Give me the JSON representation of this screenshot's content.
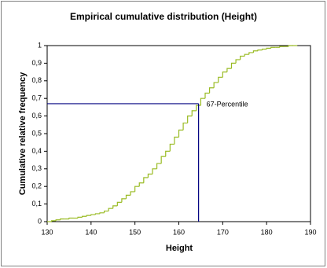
{
  "chart_data": {
    "type": "step",
    "title": "Empirical cumulative distribution (Height)",
    "x_label": "Height",
    "y_label": "Cumulative relative frequency",
    "x": [
      130,
      131,
      132,
      133,
      134,
      135,
      136,
      137,
      138,
      139,
      140,
      141,
      142,
      143,
      144,
      145,
      146,
      147,
      148,
      149,
      150,
      151,
      152,
      153,
      154,
      155,
      156,
      157,
      158,
      159,
      160,
      161,
      162,
      163,
      164,
      165,
      166,
      167,
      168,
      169,
      170,
      171,
      172,
      173,
      174,
      175,
      176,
      177,
      178,
      179,
      180,
      181,
      182,
      183,
      184,
      185,
      186,
      187
    ],
    "series": [
      {
        "color": "#99bb22",
        "values": [
          0,
          0.005,
          0.01,
          0.015,
          0.015,
          0.02,
          0.02,
          0.025,
          0.03,
          0.035,
          0.04,
          0.045,
          0.05,
          0.06,
          0.075,
          0.09,
          0.11,
          0.13,
          0.15,
          0.17,
          0.2,
          0.22,
          0.25,
          0.27,
          0.3,
          0.33,
          0.37,
          0.4,
          0.44,
          0.48,
          0.52,
          0.56,
          0.6,
          0.63,
          0.66,
          0.7,
          0.73,
          0.76,
          0.79,
          0.82,
          0.85,
          0.87,
          0.9,
          0.92,
          0.94,
          0.95,
          0.96,
          0.97,
          0.975,
          0.98,
          0.985,
          0.99,
          0.99,
          0.995,
          0.995,
          1,
          1,
          1
        ]
      }
    ],
    "xlim": [
      130,
      190
    ],
    "xticks": [
      130,
      140,
      150,
      160,
      170,
      180,
      190
    ],
    "ylim": [
      0,
      1
    ],
    "yticks": [
      0,
      {
        "value": 0.1,
        "label": "0,1"
      },
      {
        "value": 0.2,
        "label": "0,2"
      },
      {
        "value": 0.3,
        "label": "0,3"
      },
      {
        "value": 0.4,
        "label": "0,4"
      },
      {
        "value": 0.5,
        "label": "0,5"
      },
      {
        "value": 0.6,
        "label": "0,6"
      },
      {
        "value": 0.7,
        "label": "0,7"
      },
      {
        "value": 0.8,
        "label": "0,8"
      },
      {
        "value": 0.9,
        "label": "0,9"
      },
      1
    ],
    "percentile": {
      "label": "67-Percentile",
      "x": 164.5,
      "y": 0.67,
      "color": "#000080"
    }
  }
}
